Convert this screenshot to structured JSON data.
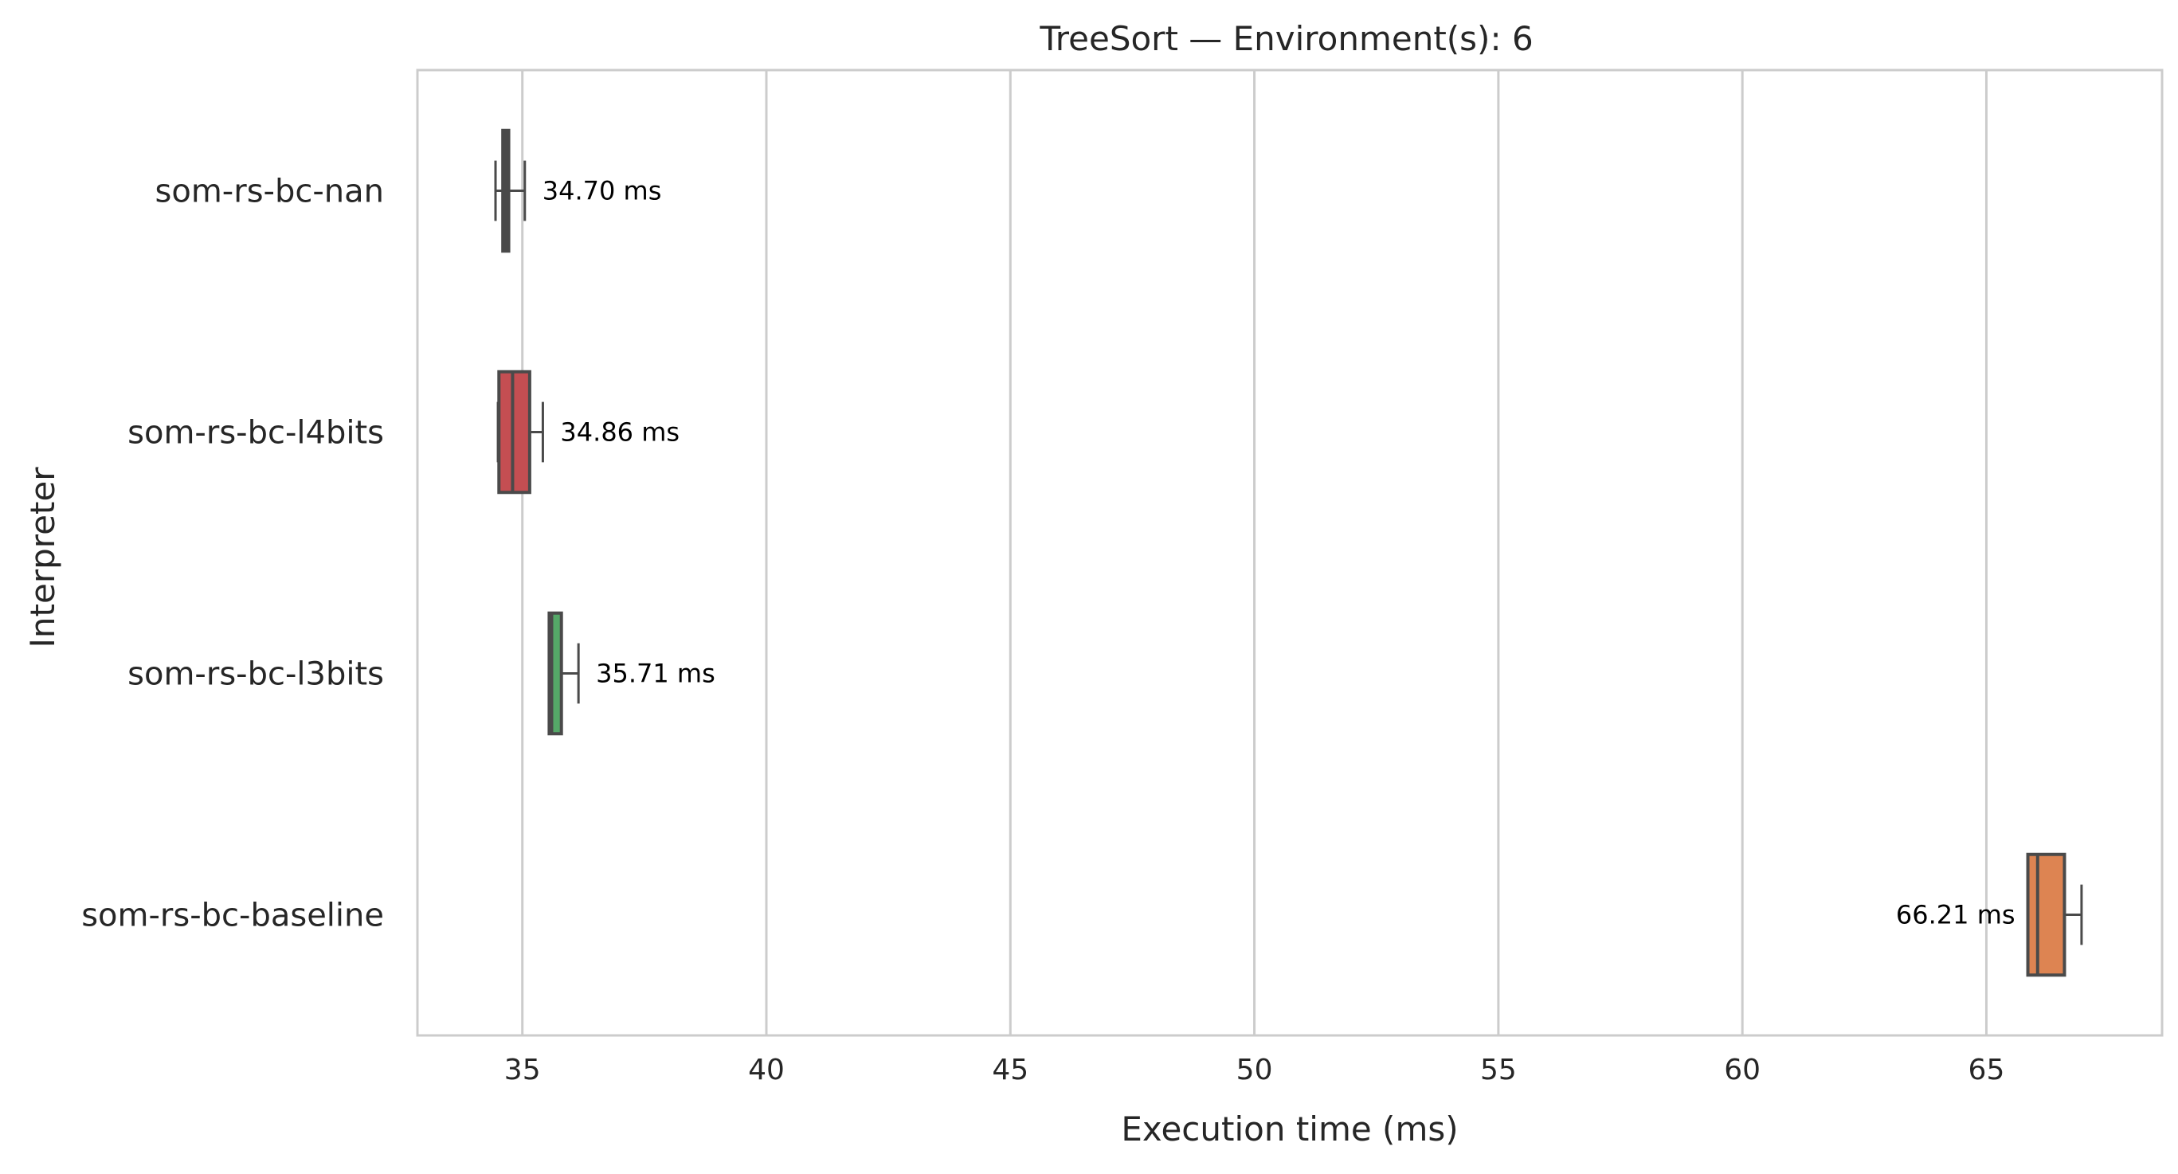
{
  "chart_data": {
    "type": "boxplot",
    "orientation": "horizontal",
    "title": "TreeSort — Environment(s): 6",
    "xlabel": "Execution time (ms)",
    "ylabel": "Interpreter",
    "xlim": [
      32.85,
      68.6
    ],
    "xticks": [
      35,
      40,
      45,
      50,
      55,
      60,
      65
    ],
    "xtick_labels": [
      "35",
      "40",
      "45",
      "50",
      "55",
      "60",
      "65"
    ],
    "grid": "vertical",
    "categories": [
      "som-rs-bc-nan",
      "som-rs-bc-l4bits",
      "som-rs-bc-l3bits",
      "som-rs-bc-baseline"
    ],
    "boxes": [
      {
        "name": "som-rs-bc-nan",
        "whisker_low": 34.45,
        "q1": 34.6,
        "median": 34.65,
        "q3": 34.72,
        "whisker_high": 35.05,
        "color": "#4a4a4a",
        "label": "34.70 ms",
        "label_side": "right"
      },
      {
        "name": "som-rs-bc-l4bits",
        "whisker_low": 34.5,
        "q1": 34.52,
        "median": 34.8,
        "q3": 35.15,
        "whisker_high": 35.42,
        "color": "#c44e52",
        "label": "34.86 ms",
        "label_side": "right"
      },
      {
        "name": "som-rs-bc-l3bits",
        "whisker_low": 35.55,
        "q1": 35.55,
        "median": 35.6,
        "q3": 35.8,
        "whisker_high": 36.15,
        "color": "#55a868",
        "label": "35.71 ms",
        "label_side": "right"
      },
      {
        "name": "som-rs-bc-baseline",
        "whisker_low": 65.85,
        "q1": 65.85,
        "median": 66.05,
        "q3": 66.6,
        "whisker_high": 66.95,
        "color": "#dd8452",
        "label": "66.21 ms",
        "label_side": "left"
      }
    ]
  }
}
